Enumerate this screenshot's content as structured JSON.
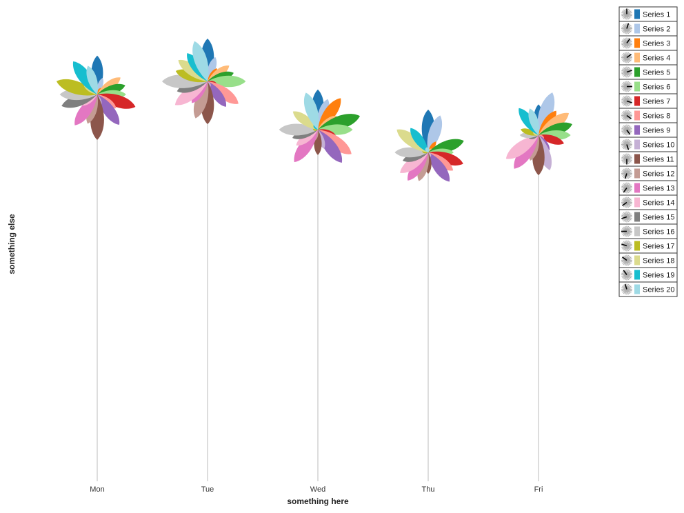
{
  "chart_data": {
    "type": "flower",
    "xlabel": "something here",
    "ylabel": "something else",
    "categories": [
      "Mon",
      "Tue",
      "Wed",
      "Thu",
      "Fri"
    ],
    "heights": [
      137,
      118,
      188,
      221,
      196
    ],
    "legend_position": "top-right",
    "series": [
      {
        "name": "Series 1",
        "color": "#1f77b4",
        "values": [
          58,
          64,
          60,
          64,
          46
        ]
      },
      {
        "name": "Series 2",
        "color": "#aec7e8",
        "values": [
          26,
          38,
          48,
          58,
          67
        ]
      },
      {
        "name": "Series 3",
        "color": "#ff7f0e",
        "values": [
          12,
          24,
          58,
          20,
          45
        ]
      },
      {
        "name": "Series 4",
        "color": "#ffbb78",
        "values": [
          43,
          40,
          35,
          8,
          56
        ]
      },
      {
        "name": "Series 5",
        "color": "#2ca02c",
        "values": [
          44,
          41,
          66,
          56,
          53
        ]
      },
      {
        "name": "Series 6",
        "color": "#98df8a",
        "values": [
          43,
          57,
          52,
          38,
          48
        ]
      },
      {
        "name": "Series 7",
        "color": "#d62728",
        "values": [
          60,
          15,
          28,
          55,
          40
        ]
      },
      {
        "name": "Series 8",
        "color": "#ff9896",
        "values": [
          35,
          57,
          62,
          46,
          10
        ]
      },
      {
        "name": "Series 9",
        "color": "#9467bd",
        "values": [
          56,
          47,
          61,
          54,
          28
        ]
      },
      {
        "name": "Series 10",
        "color": "#c5b0d5",
        "values": [
          18,
          10,
          30,
          8,
          55
        ]
      },
      {
        "name": "Series 11",
        "color": "#8c564b",
        "values": [
          68,
          64,
          38,
          32,
          60
        ]
      },
      {
        "name": "Series 12",
        "color": "#c49c94",
        "values": [
          46,
          58,
          18,
          45,
          40
        ]
      },
      {
        "name": "Series 13",
        "color": "#e377c2",
        "values": [
          57,
          40,
          60,
          52,
          62
        ]
      },
      {
        "name": "Series 14",
        "color": "#f7b6d2",
        "values": [
          28,
          60,
          40,
          52,
          60
        ]
      },
      {
        "name": "Series 15",
        "color": "#7f7f7f",
        "values": [
          56,
          48,
          40,
          40,
          15
        ]
      },
      {
        "name": "Series 16",
        "color": "#c7c7c7",
        "values": [
          56,
          68,
          58,
          50,
          28
        ]
      },
      {
        "name": "Series 17",
        "color": "#bcbd22",
        "values": [
          64,
          50,
          8,
          10,
          28
        ]
      },
      {
        "name": "Series 18",
        "color": "#dbdb8d",
        "values": [
          25,
          54,
          46,
          58,
          10
        ]
      },
      {
        "name": "Series 19",
        "color": "#17becf",
        "values": [
          61,
          52,
          10,
          45,
          50
        ]
      },
      {
        "name": "Series 20",
        "color": "#9edae5",
        "values": [
          45,
          63,
          58,
          8,
          42
        ]
      }
    ]
  }
}
